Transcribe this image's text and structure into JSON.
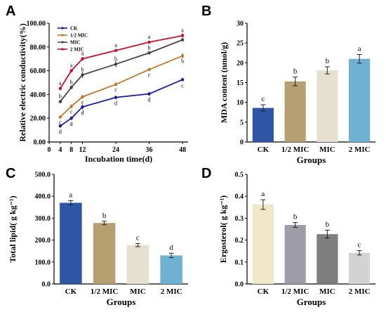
{
  "panels": {
    "A": {
      "label": "A"
    },
    "B": {
      "label": "B"
    },
    "C": {
      "label": "C"
    },
    "D": {
      "label": "D"
    }
  },
  "chart_data": [
    {
      "id": "A",
      "type": "line",
      "title": "",
      "xlabel": "Incubation time(d)",
      "ylabel": "Relative electric conductivity(%)",
      "x": [
        4,
        8,
        12,
        24,
        36,
        48
      ],
      "xlim": [
        0,
        50
      ],
      "ylim": [
        0,
        100
      ],
      "xticks": [
        "0",
        "4",
        "8",
        "12",
        "24",
        "36",
        "48"
      ],
      "yticks": [
        "0.00",
        "20.00",
        "40.00",
        "60.00",
        "80.00",
        "100.00"
      ],
      "series": [
        {
          "name": "CK",
          "color": "#1a1aa6",
          "values": [
            13.5,
            20,
            29.5,
            37.5,
            40.5,
            52.5
          ],
          "letters": [
            "d",
            "d",
            "d",
            "d",
            "d",
            "c"
          ]
        },
        {
          "name": "1/2 MIC",
          "color": "#c07830",
          "values": [
            21,
            30,
            38,
            48.5,
            61,
            72.5
          ],
          "letters": [
            "c",
            "c",
            "c",
            "c",
            "c",
            "b"
          ]
        },
        {
          "name": "MIC",
          "color": "#444444",
          "values": [
            34,
            46,
            56.5,
            65.5,
            75,
            86
          ],
          "letters": [
            "b",
            "b",
            "b",
            "b",
            "b",
            "a"
          ]
        },
        {
          "name": "2 MIC",
          "color": "#c8102e",
          "values": [
            45,
            60,
            70,
            77,
            84,
            89.5
          ],
          "letters": [
            "a",
            "a",
            "a",
            "a",
            "a",
            "a"
          ]
        }
      ],
      "errors": [
        [
          1.5,
          1.5,
          2.0,
          1.5,
          1.5,
          1.5
        ],
        [
          1.0,
          1.5,
          1.5,
          1.5,
          1.0,
          2.0
        ],
        [
          1.5,
          1.5,
          2.5,
          2.5,
          1.5,
          1.5
        ],
        [
          1.5,
          1.5,
          1.5,
          1.0,
          1.0,
          1.5
        ]
      ],
      "legend": "top-left"
    },
    {
      "id": "B",
      "type": "bar",
      "title": "",
      "xlabel": "Groups",
      "ylabel": "MDA content (nmol/g)",
      "categories": [
        "CK",
        "1/2 MIC",
        "MIC",
        "2 MIC"
      ],
      "values": [
        8.6,
        15.3,
        18.1,
        21.0
      ],
      "errors": [
        0.8,
        1.1,
        0.9,
        1.1
      ],
      "letters": [
        "c",
        "b",
        "b",
        "a"
      ],
      "colors": [
        "#2f55a5",
        "#b69f70",
        "#e5e0cf",
        "#6fb1d0"
      ],
      "ylim": [
        0,
        30
      ],
      "yticks": [
        "0",
        "5",
        "10",
        "15",
        "20",
        "25",
        "30"
      ]
    },
    {
      "id": "C",
      "type": "bar",
      "title": "",
      "xlabel": "Groups",
      "ylabel": "Total lipid( g kg⁻¹)",
      "categories": [
        "CK",
        "1/2 MIC",
        "MIC",
        "2 MIC"
      ],
      "values": [
        370,
        278,
        177,
        130
      ],
      "errors": [
        10,
        8,
        7,
        10
      ],
      "letters": [
        "a",
        "b",
        "c",
        "d"
      ],
      "colors": [
        "#2f55a5",
        "#b69f70",
        "#e5e0cf",
        "#6fb1d0"
      ],
      "ylim": [
        0,
        500
      ],
      "yticks": [
        "0.0",
        "100.0",
        "200.0",
        "300.0",
        "400.0",
        "500.0"
      ]
    },
    {
      "id": "D",
      "type": "bar",
      "title": "",
      "xlabel": "Groups",
      "ylabel": "Ergosterol( g kg⁻¹)",
      "categories": [
        "CK",
        "1/2 MIC",
        "MIC",
        "2 MIC"
      ],
      "values": [
        0.362,
        0.269,
        0.227,
        0.142
      ],
      "errors": [
        0.022,
        0.011,
        0.018,
        0.01
      ],
      "letters": [
        "a",
        "b",
        "b",
        "c"
      ],
      "colors": [
        "#f1e8c9",
        "#9d9ca7",
        "#7e7e7e",
        "#d3d3d3"
      ],
      "ylim": [
        0,
        0.5
      ],
      "yticks": [
        "0.0",
        "0.1",
        "0.2",
        "0.3",
        "0.4",
        "0.5"
      ]
    }
  ]
}
